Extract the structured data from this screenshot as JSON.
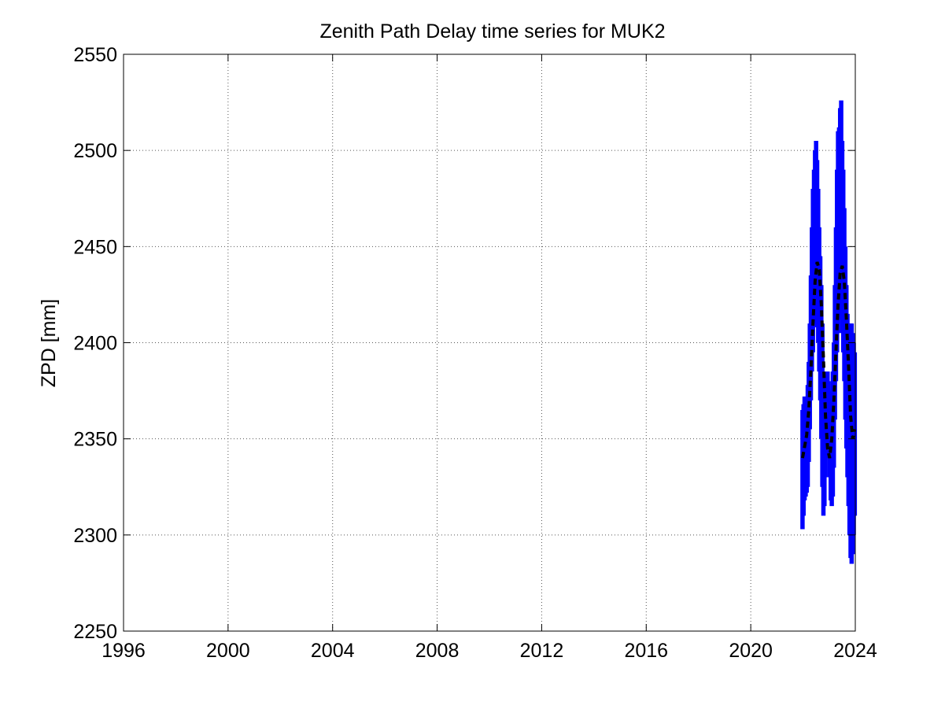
{
  "chart_data": {
    "type": "line",
    "title": "Zenith Path Delay time series for MUK2",
    "xlabel": "",
    "ylabel": "ZPD [mm]",
    "xlim": [
      1996,
      2024
    ],
    "ylim": [
      2250,
      2550
    ],
    "x_ticks": [
      1996,
      2000,
      2004,
      2008,
      2012,
      2016,
      2020,
      2024
    ],
    "y_ticks": [
      2250,
      2300,
      2350,
      2400,
      2450,
      2500,
      2550
    ],
    "grid": true,
    "colors": {
      "observed": "#0000ff",
      "smoothed": "#000000",
      "grid": "#555555",
      "axes": "#000000"
    },
    "series": [
      {
        "style": "solid-thick",
        "x": [
          2021.98,
          2022.02,
          2022.06,
          2022.1,
          2022.14,
          2022.18,
          2022.22,
          2022.26,
          2022.3,
          2022.34,
          2022.38,
          2022.42,
          2022.46,
          2022.5,
          2022.54,
          2022.58,
          2022.62,
          2022.66,
          2022.7,
          2022.74,
          2022.78,
          2022.82,
          2022.86,
          2022.9,
          2022.94,
          2022.98,
          2023.02,
          2023.06,
          2023.1,
          2023.14,
          2023.18,
          2023.22,
          2023.26,
          2023.3,
          2023.34,
          2023.38,
          2023.42,
          2023.46,
          2023.5,
          2023.54,
          2023.58,
          2023.62,
          2023.66,
          2023.7,
          2023.74,
          2023.78,
          2023.82,
          2023.86,
          2023.9,
          2023.94,
          2023.98
        ],
        "y_min": [
          2303,
          2310,
          2318,
          2320,
          2322,
          2325,
          2338,
          2355,
          2370,
          2385,
          2395,
          2410,
          2420,
          2418,
          2408,
          2400,
          2385,
          2370,
          2350,
          2325,
          2310,
          2315,
          2330,
          2345,
          2350,
          2340,
          2330,
          2318,
          2315,
          2320,
          2335,
          2360,
          2380,
          2395,
          2405,
          2412,
          2418,
          2415,
          2405,
          2395,
          2380,
          2360,
          2345,
          2330,
          2315,
          2300,
          2288,
          2285,
          2290,
          2300,
          2310
        ],
        "y_max": [
          2365,
          2368,
          2372,
          2370,
          2372,
          2378,
          2390,
          2410,
          2435,
          2460,
          2480,
          2490,
          2500,
          2505,
          2495,
          2480,
          2460,
          2445,
          2430,
          2410,
          2385,
          2370,
          2375,
          2382,
          2385,
          2380,
          2372,
          2370,
          2375,
          2385,
          2400,
          2430,
          2460,
          2490,
          2510,
          2512,
          2522,
          2526,
          2505,
          2490,
          2470,
          2450,
          2430,
          2415,
          2410,
          2408,
          2410,
          2410,
          2405,
          2400,
          2395
        ]
      },
      {
        "style": "dashed",
        "x": [
          2021.98,
          2022.06,
          2022.14,
          2022.22,
          2022.3,
          2022.38,
          2022.46,
          2022.54,
          2022.62,
          2022.7,
          2022.78,
          2022.86,
          2022.94,
          2023.02,
          2023.1,
          2023.18,
          2023.26,
          2023.34,
          2023.42,
          2023.5,
          2023.58,
          2023.66,
          2023.74,
          2023.82,
          2023.9,
          2023.98
        ],
        "y": [
          2340,
          2346,
          2352,
          2365,
          2385,
          2410,
          2432,
          2442,
          2438,
          2420,
          2392,
          2362,
          2345,
          2340,
          2350,
          2370,
          2395,
          2420,
          2436,
          2440,
          2432,
          2412,
          2388,
          2362,
          2350,
          2355
        ]
      }
    ]
  }
}
